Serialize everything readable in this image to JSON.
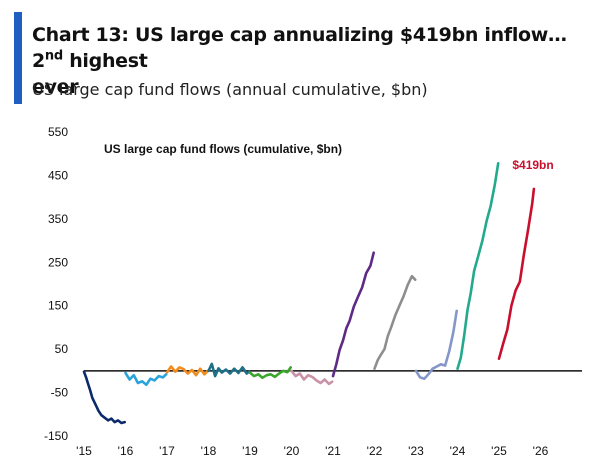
{
  "header": {
    "title_main": "Chart 13: US large cap annualizing $419bn inflow… 2",
    "title_sup": "nd",
    "title_tail": " highest",
    "title_line2": "ever",
    "subtitle": "US large cap fund flows (annual cumulative, $bn)"
  },
  "colors": {
    "accent": "#1f5fbf",
    "annotation": "#c8102e"
  },
  "chart_data": {
    "type": "line",
    "title": "US large cap fund flows (cumulative, $bn)",
    "xlabel": "",
    "ylabel": "",
    "xlim": [
      2015,
      2027
    ],
    "ylim": [
      -150,
      550
    ],
    "yticks": [
      550,
      450,
      350,
      250,
      150,
      50,
      -50,
      -150
    ],
    "ytick_labels": [
      "550",
      "450",
      "350",
      "250",
      "150",
      "50",
      "-50",
      "-150"
    ],
    "xticks": [
      2015,
      2016,
      2017,
      2018,
      2019,
      2020,
      2021,
      2022,
      2023,
      2024,
      2025,
      2026
    ],
    "xtick_labels": [
      "'15",
      "'16",
      "'17",
      "'18",
      "'19",
      "'20",
      "'21",
      "'22",
      "'23",
      "'24",
      "'25",
      "'26"
    ],
    "zero_line": 0,
    "grid": false,
    "annotation": {
      "text": "$419bn",
      "x": 2025.82,
      "y": 419
    },
    "series": [
      {
        "color": "#0b2a6b",
        "x": [
          2015.0,
          2015.05,
          2015.1,
          2015.15,
          2015.2,
          2015.28,
          2015.35,
          2015.42,
          2015.5,
          2015.58,
          2015.66,
          2015.74,
          2015.82,
          2015.9,
          2015.98
        ],
        "y": [
          -2,
          -15,
          -30,
          -45,
          -62,
          -78,
          -92,
          -102,
          -108,
          -114,
          -110,
          -118,
          -114,
          -120,
          -118
        ]
      },
      {
        "color": "#2aa3dc",
        "x": [
          2016.0,
          2016.1,
          2016.2,
          2016.3,
          2016.4,
          2016.5,
          2016.6,
          2016.7,
          2016.8,
          2016.9,
          2016.98
        ],
        "y": [
          -5,
          -20,
          -10,
          -28,
          -24,
          -32,
          -18,
          -22,
          -12,
          -15,
          -8
        ]
      },
      {
        "color": "#f08c1e",
        "x": [
          2017.0,
          2017.1,
          2017.2,
          2017.3,
          2017.4,
          2017.5,
          2017.6,
          2017.7,
          2017.8,
          2017.9,
          2017.98
        ],
        "y": [
          -3,
          10,
          -2,
          8,
          4,
          -6,
          2,
          -10,
          5,
          -8,
          0
        ]
      },
      {
        "color": "#1f6f87",
        "x": [
          2018.0,
          2018.08,
          2018.16,
          2018.24,
          2018.32,
          2018.42,
          2018.52,
          2018.62,
          2018.72,
          2018.82,
          2018.92,
          2018.98
        ],
        "y": [
          0,
          16,
          -12,
          6,
          -4,
          3,
          -6,
          5,
          -5,
          8,
          -6,
          -2
        ]
      },
      {
        "color": "#3aa62c",
        "x": [
          2019.0,
          2019.1,
          2019.2,
          2019.3,
          2019.4,
          2019.5,
          2019.6,
          2019.7,
          2019.8,
          2019.9,
          2019.98
        ],
        "y": [
          -4,
          -12,
          -8,
          -16,
          -10,
          -8,
          -14,
          -6,
          0,
          -3,
          8
        ]
      },
      {
        "color": "#c992a6",
        "x": [
          2020.0,
          2020.1,
          2020.2,
          2020.3,
          2020.4,
          2020.5,
          2020.6,
          2020.7,
          2020.8,
          2020.9,
          2020.98
        ],
        "y": [
          0,
          -12,
          -6,
          -20,
          -10,
          -14,
          -22,
          -28,
          -20,
          -30,
          -25
        ]
      },
      {
        "color": "#5e2a86",
        "x": [
          2021.0,
          2021.08,
          2021.16,
          2021.24,
          2021.32,
          2021.4,
          2021.5,
          2021.6,
          2021.7,
          2021.8,
          2021.9,
          2021.98
        ],
        "y": [
          -12,
          15,
          48,
          70,
          98,
          115,
          148,
          170,
          192,
          225,
          242,
          272
        ]
      },
      {
        "color": "#8e8e8e",
        "x": [
          2022.0,
          2022.08,
          2022.16,
          2022.24,
          2022.32,
          2022.4,
          2022.5,
          2022.6,
          2022.7,
          2022.8,
          2022.9,
          2022.98
        ],
        "y": [
          5,
          25,
          38,
          50,
          80,
          100,
          128,
          150,
          172,
          198,
          218,
          210
        ]
      },
      {
        "color": "#8597c8",
        "x": [
          2023.0,
          2023.1,
          2023.2,
          2023.3,
          2023.4,
          2023.5,
          2023.6,
          2023.7,
          2023.8,
          2023.9,
          2023.98
        ],
        "y": [
          0,
          -15,
          -18,
          -8,
          5,
          10,
          15,
          12,
          45,
          90,
          138
        ]
      },
      {
        "color": "#23a98c",
        "x": [
          2024.0,
          2024.08,
          2024.16,
          2024.24,
          2024.32,
          2024.4,
          2024.5,
          2024.6,
          2024.7,
          2024.8,
          2024.9,
          2024.98
        ],
        "y": [
          5,
          30,
          80,
          140,
          180,
          230,
          265,
          300,
          345,
          380,
          430,
          478
        ]
      },
      {
        "color": "#c8102e",
        "x": [
          2025.0,
          2025.1,
          2025.2,
          2025.3,
          2025.4,
          2025.5,
          2025.6,
          2025.7,
          2025.8,
          2025.84
        ],
        "y": [
          28,
          62,
          95,
          150,
          185,
          205,
          268,
          325,
          385,
          419
        ]
      }
    ]
  }
}
